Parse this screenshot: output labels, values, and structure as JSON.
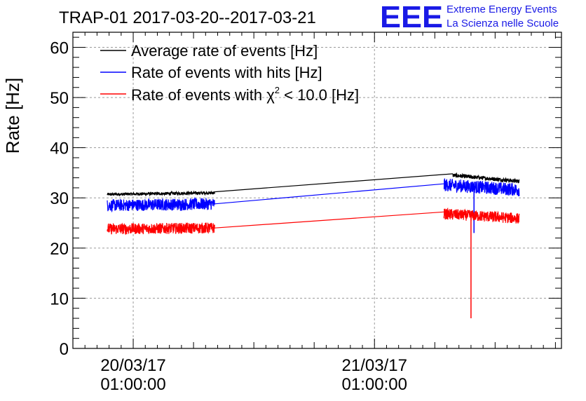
{
  "chart_data": {
    "type": "line",
    "title": "TRAP-01 2017-03-20--2017-03-21",
    "ylabel": "Rate [Hz]",
    "xlabel": "",
    "ylim": [
      0,
      63
    ],
    "y_ticks": [
      0,
      10,
      20,
      30,
      40,
      50,
      60
    ],
    "x_range_hours": [
      -10,
      71
    ],
    "grid": true,
    "legend_position": "top-left",
    "x_ticks": [
      {
        "pos": 0,
        "date": "20/03/17",
        "time": "01:00:00"
      },
      {
        "pos": 40,
        "date": "21/03/17",
        "time": "01:00:00"
      }
    ],
    "colors": {
      "avg": "#000000",
      "hits": "#0000ff",
      "chi2": "#ff0000"
    },
    "series": [
      {
        "key": "avg",
        "name": "Average rate of events [Hz]",
        "segments": [
          {
            "type": "noisy",
            "x0": -4.3,
            "x1": 13.5,
            "v0": 30.7,
            "v1": 31.0,
            "noise": 0.3
          },
          {
            "type": "line",
            "x0": 13.5,
            "x1": 53.0,
            "v0": 31.2,
            "v1": 34.8
          },
          {
            "type": "noisy",
            "x0": 53.0,
            "x1": 64.0,
            "v0": 34.5,
            "v1": 33.3,
            "noise": 0.4
          }
        ],
        "spikes": []
      },
      {
        "key": "hits",
        "name": "Rate of events with hits [Hz]",
        "segments": [
          {
            "type": "noisy",
            "x0": -4.3,
            "x1": 13.5,
            "v0": 28.5,
            "v1": 28.8,
            "noise": 1.2
          },
          {
            "type": "line",
            "x0": 13.5,
            "x1": 51.5,
            "v0": 28.8,
            "v1": 32.8
          },
          {
            "type": "noisy",
            "x0": 51.5,
            "x1": 64.0,
            "v0": 32.6,
            "v1": 31.6,
            "noise": 1.3
          }
        ],
        "spikes": [
          {
            "x": 56.5,
            "v": 23.0
          }
        ]
      },
      {
        "key": "chi2",
        "name_prefix": "Rate of events with ",
        "name_symbol": "χ",
        "name_sup": "2",
        "name_suffix": " < 10.0 [Hz]",
        "segments": [
          {
            "type": "noisy",
            "x0": -4.3,
            "x1": 13.5,
            "v0": 23.8,
            "v1": 24.0,
            "noise": 1.1
          },
          {
            "type": "line",
            "x0": 13.5,
            "x1": 51.5,
            "v0": 24.0,
            "v1": 27.2
          },
          {
            "type": "noisy",
            "x0": 51.5,
            "x1": 64.0,
            "v0": 26.8,
            "v1": 25.9,
            "noise": 1.1
          }
        ],
        "spikes": [
          {
            "x": 56.0,
            "v": 6.0
          }
        ]
      }
    ]
  },
  "logo": {
    "text": "EEE",
    "line1": "Extreme Energy Events",
    "line2": "La Scienza nelle Scuole",
    "color": "#1a1ae6"
  }
}
